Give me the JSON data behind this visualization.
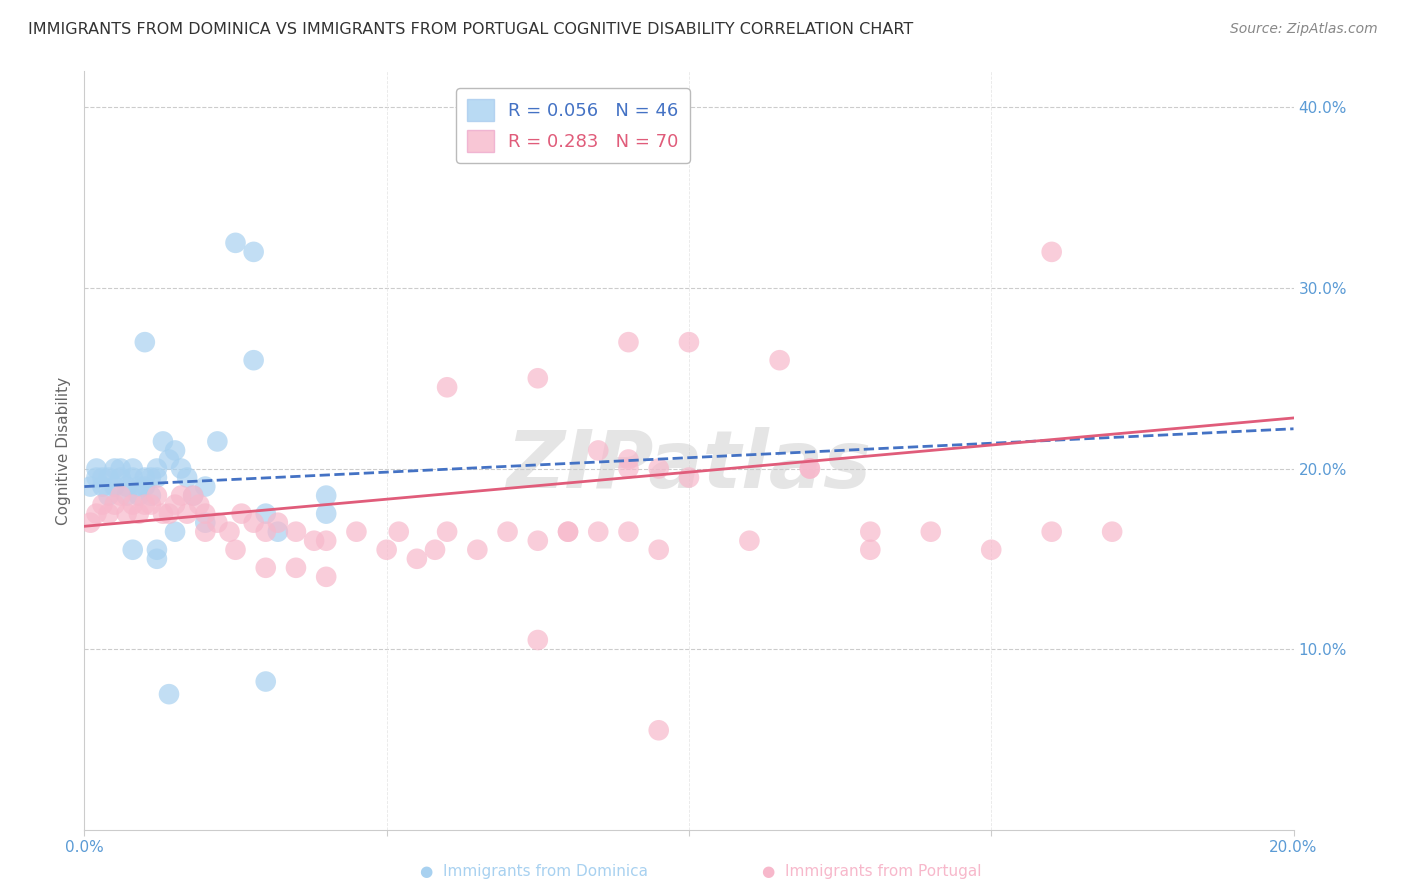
{
  "title": "IMMIGRANTS FROM DOMINICA VS IMMIGRANTS FROM PORTUGAL COGNITIVE DISABILITY CORRELATION CHART",
  "source": "Source: ZipAtlas.com",
  "ylabel": "Cognitive Disability",
  "xlim": [
    0.0,
    0.2
  ],
  "ylim": [
    0.0,
    0.42
  ],
  "ytick_positions": [
    0.0,
    0.1,
    0.2,
    0.3,
    0.4
  ],
  "ytick_labels": [
    "",
    "10.0%",
    "20.0%",
    "30.0%",
    "40.0%"
  ],
  "xtick_positions": [
    0.0,
    0.05,
    0.1,
    0.15,
    0.2
  ],
  "xtick_labels": [
    "0.0%",
    "",
    "",
    "",
    "20.0%"
  ],
  "dominica_R": 0.056,
  "dominica_N": 46,
  "portugal_R": 0.283,
  "portugal_N": 70,
  "dominica_color": "#a8d1f0",
  "portugal_color": "#f7b8cb",
  "dominica_line_color": "#4472c4",
  "portugal_line_color": "#e05c7a",
  "watermark": "ZIPatlas",
  "background_color": "#ffffff",
  "grid_color": "#cccccc",
  "axis_label_color": "#5b9bd5",
  "title_color": "#333333",
  "dominica_x": [
    0.001,
    0.002,
    0.002,
    0.003,
    0.003,
    0.004,
    0.004,
    0.005,
    0.005,
    0.006,
    0.006,
    0.007,
    0.007,
    0.008,
    0.008,
    0.009,
    0.009,
    0.01,
    0.01,
    0.011,
    0.011,
    0.012,
    0.012,
    0.013,
    0.014,
    0.015,
    0.016,
    0.017,
    0.018,
    0.02,
    0.022,
    0.025,
    0.028,
    0.03,
    0.032,
    0.02,
    0.04,
    0.015,
    0.012,
    0.008,
    0.012,
    0.014,
    0.03,
    0.028,
    0.01,
    0.04
  ],
  "dominica_y": [
    0.19,
    0.2,
    0.195,
    0.19,
    0.195,
    0.195,
    0.185,
    0.2,
    0.19,
    0.195,
    0.2,
    0.19,
    0.185,
    0.195,
    0.2,
    0.19,
    0.185,
    0.19,
    0.195,
    0.195,
    0.185,
    0.2,
    0.195,
    0.215,
    0.205,
    0.21,
    0.2,
    0.195,
    0.185,
    0.19,
    0.215,
    0.325,
    0.32,
    0.175,
    0.165,
    0.17,
    0.185,
    0.165,
    0.155,
    0.155,
    0.15,
    0.075,
    0.082,
    0.26,
    0.27,
    0.175
  ],
  "portugal_x": [
    0.001,
    0.002,
    0.003,
    0.004,
    0.005,
    0.006,
    0.007,
    0.008,
    0.009,
    0.01,
    0.011,
    0.012,
    0.013,
    0.014,
    0.015,
    0.016,
    0.017,
    0.018,
    0.019,
    0.02,
    0.022,
    0.024,
    0.026,
    0.028,
    0.03,
    0.032,
    0.035,
    0.038,
    0.04,
    0.045,
    0.05,
    0.052,
    0.055,
    0.058,
    0.06,
    0.065,
    0.07,
    0.075,
    0.08,
    0.085,
    0.09,
    0.095,
    0.1,
    0.11,
    0.12,
    0.13,
    0.14,
    0.15,
    0.16,
    0.17,
    0.075,
    0.06,
    0.085,
    0.09,
    0.04,
    0.03,
    0.035,
    0.025,
    0.02,
    0.095,
    0.075,
    0.09,
    0.1,
    0.115,
    0.12,
    0.095,
    0.08,
    0.13,
    0.16,
    0.09
  ],
  "portugal_y": [
    0.17,
    0.175,
    0.18,
    0.175,
    0.18,
    0.185,
    0.175,
    0.18,
    0.175,
    0.18,
    0.18,
    0.185,
    0.175,
    0.175,
    0.18,
    0.185,
    0.175,
    0.185,
    0.18,
    0.175,
    0.17,
    0.165,
    0.175,
    0.17,
    0.165,
    0.17,
    0.165,
    0.16,
    0.16,
    0.165,
    0.155,
    0.165,
    0.15,
    0.155,
    0.165,
    0.155,
    0.165,
    0.16,
    0.165,
    0.165,
    0.2,
    0.2,
    0.195,
    0.16,
    0.2,
    0.165,
    0.165,
    0.155,
    0.32,
    0.165,
    0.25,
    0.245,
    0.21,
    0.205,
    0.14,
    0.145,
    0.145,
    0.155,
    0.165,
    0.055,
    0.105,
    0.27,
    0.27,
    0.26,
    0.2,
    0.155,
    0.165,
    0.155,
    0.165,
    0.165
  ]
}
